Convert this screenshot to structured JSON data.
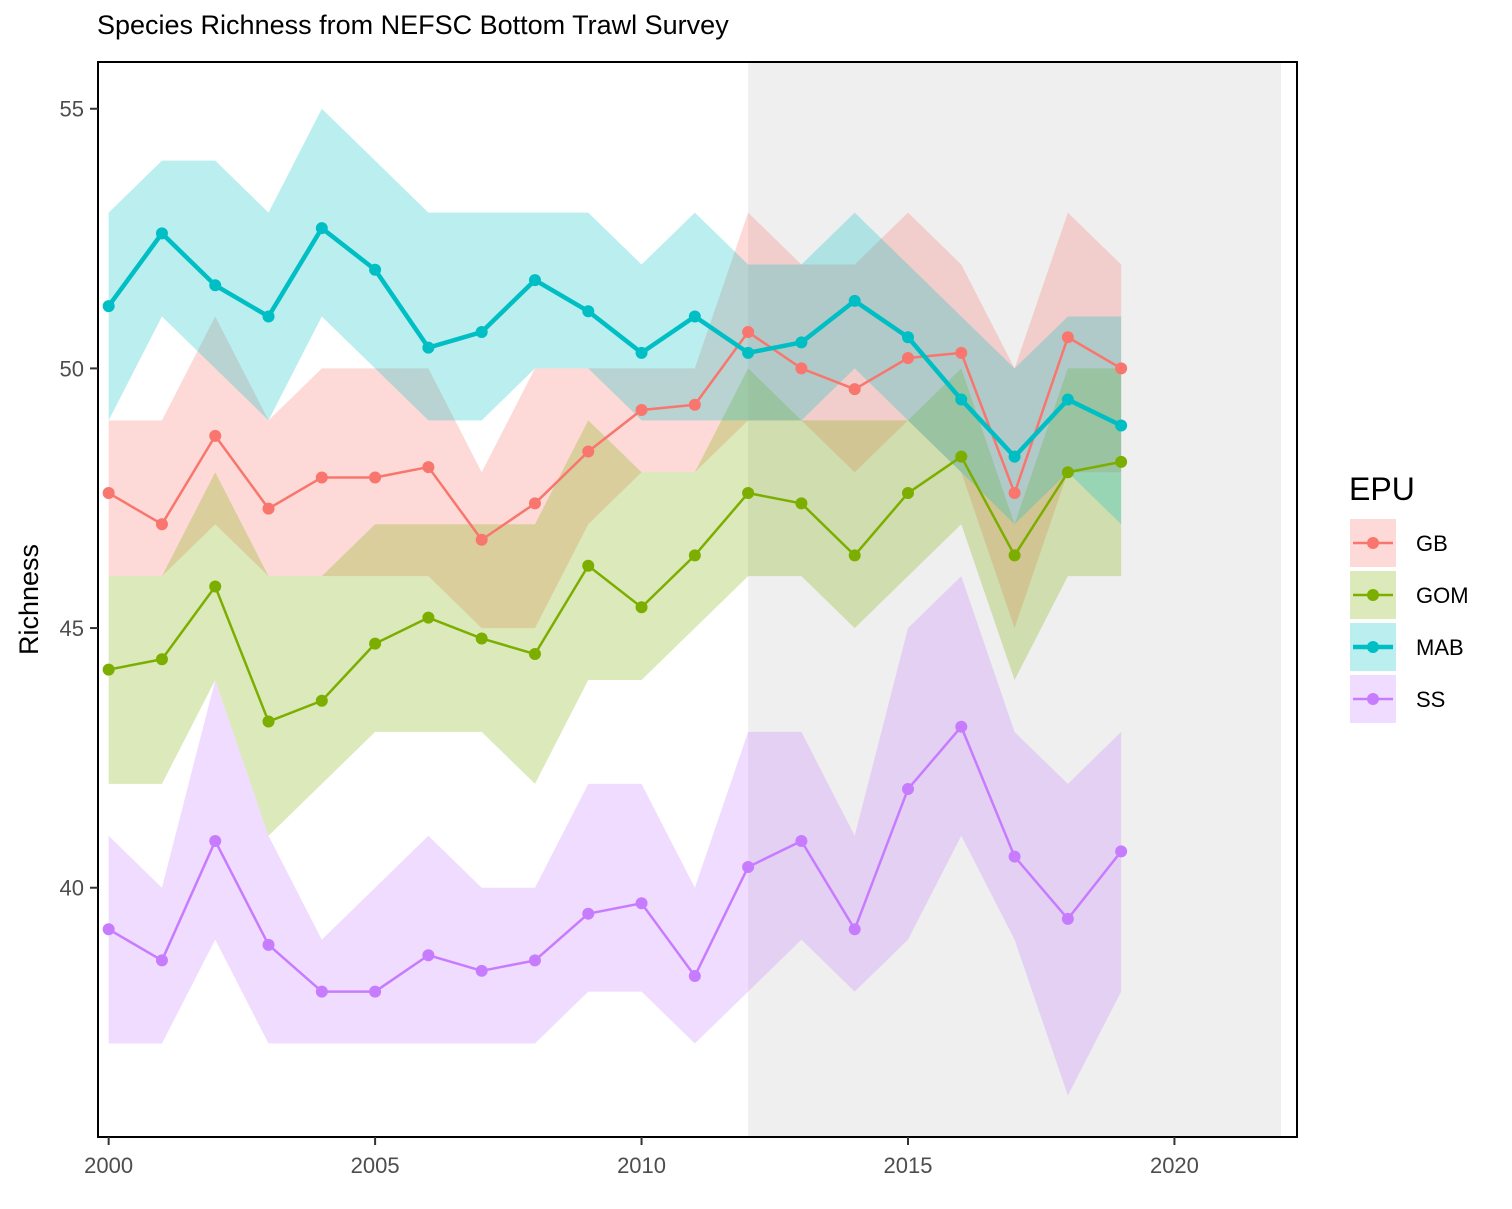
{
  "chart_data": {
    "type": "line",
    "title": "Species Richness from NEFSC Bottom Trawl Survey",
    "xlabel": "",
    "ylabel": "Richness",
    "xlim": [
      1999.8,
      2022.3
    ],
    "ylim": [
      35.2,
      55.9
    ],
    "x_ticks": [
      2000,
      2005,
      2010,
      2015,
      2020
    ],
    "y_ticks": [
      40,
      45,
      50,
      55
    ],
    "grid": false,
    "shaded_region": {
      "x_start": 2012,
      "x_end": 2022,
      "color": "#efefef"
    },
    "legend": {
      "title": "EPU",
      "position": "right"
    },
    "x": [
      2000,
      2001,
      2002,
      2003,
      2004,
      2005,
      2006,
      2007,
      2008,
      2009,
      2010,
      2011,
      2012,
      2013,
      2014,
      2015,
      2016,
      2017,
      2018,
      2019
    ],
    "series": [
      {
        "name": "GB",
        "color": "#F8766D",
        "values": [
          47.6,
          47.0,
          48.7,
          47.3,
          47.9,
          47.9,
          48.1,
          46.7,
          47.4,
          48.4,
          49.2,
          49.3,
          50.7,
          50.0,
          49.6,
          50.2,
          50.3,
          47.6,
          50.6,
          50.0
        ],
        "lower": [
          46.0,
          46.0,
          47.0,
          46.0,
          46.0,
          46.0,
          46.0,
          45.0,
          45.0,
          47.0,
          48.0,
          48.0,
          49.0,
          49.0,
          48.0,
          49.0,
          48.0,
          45.0,
          48.0,
          48.0
        ],
        "upper": [
          49.0,
          49.0,
          51.0,
          49.0,
          50.0,
          50.0,
          50.0,
          48.0,
          50.0,
          50.0,
          50.0,
          50.0,
          53.0,
          52.0,
          52.0,
          53.0,
          52.0,
          50.0,
          53.0,
          52.0
        ]
      },
      {
        "name": "GOM",
        "color": "#7CAE00",
        "values": [
          44.2,
          44.4,
          45.8,
          43.2,
          43.6,
          44.7,
          45.2,
          44.8,
          44.5,
          46.2,
          45.4,
          46.4,
          47.6,
          47.4,
          46.4,
          47.6,
          48.3,
          46.4,
          48.0,
          48.2
        ],
        "lower": [
          42.0,
          42.0,
          44.0,
          41.0,
          42.0,
          43.0,
          43.0,
          43.0,
          42.0,
          44.0,
          44.0,
          45.0,
          46.0,
          46.0,
          45.0,
          46.0,
          47.0,
          44.0,
          46.0,
          46.0
        ],
        "upper": [
          46.0,
          46.0,
          48.0,
          46.0,
          46.0,
          47.0,
          47.0,
          47.0,
          47.0,
          49.0,
          48.0,
          48.0,
          50.0,
          49.0,
          49.0,
          49.0,
          50.0,
          47.0,
          50.0,
          50.0
        ]
      },
      {
        "name": "MAB",
        "color": "#00BFC4",
        "values": [
          51.2,
          52.6,
          51.6,
          51.0,
          52.7,
          51.9,
          50.4,
          50.7,
          51.7,
          51.1,
          50.3,
          51.0,
          50.3,
          50.5,
          51.3,
          50.6,
          49.4,
          48.3,
          49.4,
          48.9
        ],
        "lower": [
          49.0,
          51.0,
          50.0,
          49.0,
          51.0,
          50.0,
          49.0,
          49.0,
          50.0,
          50.0,
          49.0,
          49.0,
          49.0,
          49.0,
          50.0,
          49.0,
          48.0,
          47.0,
          48.0,
          47.0
        ],
        "upper": [
          53.0,
          54.0,
          54.0,
          53.0,
          55.0,
          54.0,
          53.0,
          53.0,
          53.0,
          53.0,
          52.0,
          53.0,
          52.0,
          52.0,
          53.0,
          52.0,
          51.0,
          50.0,
          51.0,
          51.0
        ]
      },
      {
        "name": "SS",
        "color": "#C77CFF",
        "values": [
          39.2,
          38.6,
          40.9,
          38.9,
          38.0,
          38.0,
          38.7,
          38.4,
          38.6,
          39.5,
          39.7,
          38.3,
          40.4,
          40.9,
          39.2,
          41.9,
          43.1,
          40.6,
          39.4,
          40.7
        ],
        "lower": [
          37.0,
          37.0,
          39.0,
          37.0,
          37.0,
          37.0,
          37.0,
          37.0,
          37.0,
          38.0,
          38.0,
          37.0,
          38.0,
          39.0,
          38.0,
          39.0,
          41.0,
          39.0,
          36.0,
          38.0
        ],
        "upper": [
          41.0,
          40.0,
          44.0,
          41.0,
          39.0,
          40.0,
          41.0,
          40.0,
          40.0,
          42.0,
          42.0,
          40.0,
          43.0,
          43.0,
          41.0,
          45.0,
          46.0,
          43.0,
          42.0,
          43.0
        ]
      }
    ]
  }
}
